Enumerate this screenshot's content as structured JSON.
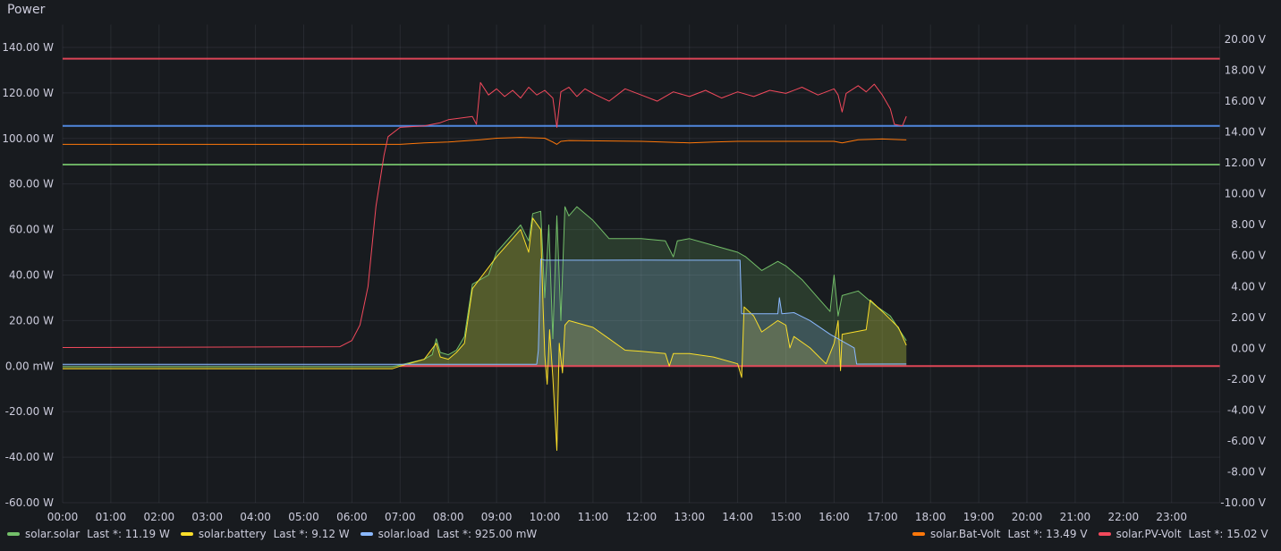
{
  "panel": {
    "title": "Power"
  },
  "chart_data": {
    "type": "line",
    "title": "Power",
    "x_unit": "time of day",
    "xlim": [
      "00:00",
      "24:00"
    ],
    "x_ticks": [
      "00:00",
      "01:00",
      "02:00",
      "03:00",
      "04:00",
      "05:00",
      "06:00",
      "07:00",
      "08:00",
      "09:00",
      "10:00",
      "11:00",
      "12:00",
      "13:00",
      "14:00",
      "15:00",
      "16:00",
      "17:00",
      "18:00",
      "19:00",
      "20:00",
      "21:00",
      "22:00",
      "23:00"
    ],
    "y_left": {
      "ylim": [
        -60,
        150
      ],
      "ticks": [
        -60,
        -40,
        -20,
        0,
        20,
        40,
        60,
        80,
        100,
        120,
        140
      ],
      "tick_labels": [
        "-60.00 W",
        "-40.00 W",
        "-20.00 W",
        "0.00 mW",
        "20.00 W",
        "40.00 W",
        "60.00 W",
        "80.00 W",
        "100.00 W",
        "120.00 W",
        "140.00 W"
      ]
    },
    "y_right": {
      "ylim": [
        -10,
        21
      ],
      "ticks": [
        -10,
        -8,
        -6,
        -4,
        -2,
        0,
        2,
        4,
        6,
        8,
        10,
        12,
        14,
        16,
        18,
        20
      ],
      "tick_labels": [
        "-10.00 V",
        "-8.00 V",
        "-6.00 V",
        "-4.00 V",
        "-2.00 V",
        "0.00 V",
        "2.00 V",
        "4.00 V",
        "6.00 V",
        "8.00 V",
        "10.00 V",
        "12.00 V",
        "14.00 V",
        "16.00 V",
        "18.00 V",
        "20.00 V"
      ]
    },
    "grid": true,
    "legend_placement": "bottom",
    "thresholds": [
      {
        "axis": "left",
        "value": 135,
        "color": "#f2495c"
      },
      {
        "axis": "left",
        "value": 105.5,
        "color": "#5794f2"
      },
      {
        "axis": "left",
        "value": 88.5,
        "color": "#73bf69"
      },
      {
        "axis": "left",
        "value": 0,
        "color": "#f2495c",
        "from": "07:00"
      }
    ],
    "series": [
      {
        "name": "solar.solar",
        "axis": "left",
        "color": "#73bf69",
        "fill": true,
        "last": "Last *: 11.19 W",
        "points": [
          [
            "00:00",
            -0.3
          ],
          [
            "06:50",
            -0.3
          ],
          [
            "07:00",
            0.5
          ],
          [
            "07:30",
            3
          ],
          [
            "07:40",
            5
          ],
          [
            "07:45",
            12
          ],
          [
            "07:50",
            6
          ],
          [
            "08:00",
            5
          ],
          [
            "08:10",
            7
          ],
          [
            "08:20",
            13
          ],
          [
            "08:30",
            36
          ],
          [
            "08:50",
            40
          ],
          [
            "09:00",
            50
          ],
          [
            "09:20",
            58
          ],
          [
            "09:30",
            62
          ],
          [
            "09:40",
            55
          ],
          [
            "09:45",
            67
          ],
          [
            "09:55",
            68
          ],
          [
            "10:00",
            30
          ],
          [
            "10:05",
            62
          ],
          [
            "10:10",
            12
          ],
          [
            "10:15",
            66
          ],
          [
            "10:20",
            20
          ],
          [
            "10:25",
            70
          ],
          [
            "10:30",
            66
          ],
          [
            "10:40",
            70
          ],
          [
            "11:00",
            64
          ],
          [
            "11:10",
            60
          ],
          [
            "11:20",
            56
          ],
          [
            "12:00",
            56
          ],
          [
            "12:30",
            55
          ],
          [
            "12:40",
            48
          ],
          [
            "12:45",
            55
          ],
          [
            "13:00",
            56
          ],
          [
            "13:30",
            53
          ],
          [
            "14:00",
            50
          ],
          [
            "14:10",
            48
          ],
          [
            "14:30",
            42
          ],
          [
            "14:50",
            46
          ],
          [
            "15:00",
            44
          ],
          [
            "15:20",
            38
          ],
          [
            "15:40",
            30
          ],
          [
            "15:55",
            24
          ],
          [
            "16:00",
            40
          ],
          [
            "16:05",
            22
          ],
          [
            "16:10",
            31
          ],
          [
            "16:30",
            33
          ],
          [
            "16:50",
            27
          ],
          [
            "17:10",
            22
          ],
          [
            "17:30",
            11.19
          ]
        ]
      },
      {
        "name": "solar.battery",
        "axis": "left",
        "color": "#fade2a",
        "fill": true,
        "last": "Last *: 9.12 W",
        "points": [
          [
            "00:00",
            -1.2
          ],
          [
            "06:50",
            -1.2
          ],
          [
            "07:00",
            0
          ],
          [
            "07:30",
            3
          ],
          [
            "07:45",
            10
          ],
          [
            "07:50",
            4
          ],
          [
            "08:00",
            3
          ],
          [
            "08:10",
            6
          ],
          [
            "08:20",
            10
          ],
          [
            "08:30",
            34
          ],
          [
            "09:00",
            48
          ],
          [
            "09:20",
            56
          ],
          [
            "09:30",
            60
          ],
          [
            "09:40",
            50
          ],
          [
            "09:45",
            65
          ],
          [
            "09:55",
            60
          ],
          [
            "09:58",
            25
          ],
          [
            "10:00",
            5
          ],
          [
            "10:03",
            -8
          ],
          [
            "10:06",
            16
          ],
          [
            "10:10",
            -5
          ],
          [
            "10:15",
            -37
          ],
          [
            "10:18",
            10
          ],
          [
            "10:22",
            -3
          ],
          [
            "10:25",
            18
          ],
          [
            "10:30",
            20
          ],
          [
            "11:00",
            17
          ],
          [
            "11:20",
            12
          ],
          [
            "11:40",
            7
          ],
          [
            "12:00",
            6.5
          ],
          [
            "12:30",
            5.5
          ],
          [
            "12:35",
            0
          ],
          [
            "12:40",
            5.5
          ],
          [
            "13:00",
            5.5
          ],
          [
            "13:30",
            4
          ],
          [
            "14:00",
            1
          ],
          [
            "14:05",
            -5
          ],
          [
            "14:08",
            26
          ],
          [
            "14:20",
            22
          ],
          [
            "14:30",
            15
          ],
          [
            "14:50",
            20
          ],
          [
            "15:00",
            18
          ],
          [
            "15:05",
            8
          ],
          [
            "15:10",
            13
          ],
          [
            "15:30",
            8
          ],
          [
            "15:50",
            1
          ],
          [
            "16:00",
            10
          ],
          [
            "16:05",
            20
          ],
          [
            "16:08",
            -2
          ],
          [
            "16:10",
            14
          ],
          [
            "16:40",
            16
          ],
          [
            "16:45",
            29
          ],
          [
            "17:00",
            24
          ],
          [
            "17:20",
            17
          ],
          [
            "17:30",
            9.12
          ]
        ]
      },
      {
        "name": "solar.load",
        "axis": "left",
        "color": "#8ab8ff",
        "fill": true,
        "last": "Last *: 925.00 mW",
        "points": [
          [
            "00:00",
            0.8
          ],
          [
            "09:50",
            0.8
          ],
          [
            "09:52",
            7
          ],
          [
            "09:55",
            47
          ],
          [
            "10:00",
            46.5
          ],
          [
            "11:00",
            46.5
          ],
          [
            "12:00",
            46.6
          ],
          [
            "13:00",
            46.5
          ],
          [
            "14:00",
            46.5
          ],
          [
            "14:03",
            46.5
          ],
          [
            "14:05",
            23
          ],
          [
            "14:50",
            23
          ],
          [
            "14:52",
            30
          ],
          [
            "14:55",
            23
          ],
          [
            "15:10",
            23.5
          ],
          [
            "15:30",
            20
          ],
          [
            "15:55",
            14
          ],
          [
            "16:10",
            11
          ],
          [
            "16:25",
            8
          ],
          [
            "16:28",
            0.9
          ],
          [
            "17:30",
            0.925
          ]
        ]
      },
      {
        "name": "solar.Bat-Volt",
        "axis": "right",
        "color": "#ff780a",
        "fill": false,
        "last": "Last *: 13.49 V",
        "points": [
          [
            "00:00",
            13.2
          ],
          [
            "07:00",
            13.2
          ],
          [
            "07:30",
            13.3
          ],
          [
            "08:00",
            13.35
          ],
          [
            "08:40",
            13.5
          ],
          [
            "09:00",
            13.6
          ],
          [
            "09:30",
            13.65
          ],
          [
            "10:00",
            13.6
          ],
          [
            "10:10",
            13.35
          ],
          [
            "10:15",
            13.2
          ],
          [
            "10:20",
            13.4
          ],
          [
            "10:30",
            13.45
          ],
          [
            "12:00",
            13.4
          ],
          [
            "13:00",
            13.3
          ],
          [
            "13:30",
            13.35
          ],
          [
            "14:00",
            13.4
          ],
          [
            "16:00",
            13.4
          ],
          [
            "16:10",
            13.3
          ],
          [
            "16:30",
            13.5
          ],
          [
            "17:00",
            13.55
          ],
          [
            "17:25",
            13.5
          ],
          [
            "17:30",
            13.49
          ]
        ]
      },
      {
        "name": "solar.PV-Volt",
        "axis": "right",
        "color": "#f2495c",
        "fill": false,
        "last": "Last *: 15.02 V",
        "points": [
          [
            "00:00",
            0.05
          ],
          [
            "05:45",
            0.1
          ],
          [
            "06:00",
            0.5
          ],
          [
            "06:10",
            1.5
          ],
          [
            "06:20",
            4
          ],
          [
            "06:30",
            9.2
          ],
          [
            "06:40",
            12.5
          ],
          [
            "06:45",
            13.7
          ],
          [
            "07:00",
            14.3
          ],
          [
            "07:30",
            14.4
          ],
          [
            "07:50",
            14.6
          ],
          [
            "08:00",
            14.8
          ],
          [
            "08:30",
            15.0
          ],
          [
            "08:35",
            14.5
          ],
          [
            "08:40",
            17.2
          ],
          [
            "08:50",
            16.4
          ],
          [
            "09:00",
            16.8
          ],
          [
            "09:10",
            16.3
          ],
          [
            "09:20",
            16.7
          ],
          [
            "09:30",
            16.2
          ],
          [
            "09:40",
            16.9
          ],
          [
            "09:50",
            16.4
          ],
          [
            "10:00",
            16.7
          ],
          [
            "10:10",
            16.2
          ],
          [
            "10:15",
            14.3
          ],
          [
            "10:20",
            16.6
          ],
          [
            "10:30",
            16.9
          ],
          [
            "10:40",
            16.3
          ],
          [
            "10:50",
            16.8
          ],
          [
            "11:00",
            16.5
          ],
          [
            "11:20",
            16.0
          ],
          [
            "11:40",
            16.8
          ],
          [
            "12:00",
            16.4
          ],
          [
            "12:20",
            16.0
          ],
          [
            "12:40",
            16.6
          ],
          [
            "13:00",
            16.3
          ],
          [
            "13:20",
            16.7
          ],
          [
            "13:40",
            16.2
          ],
          [
            "14:00",
            16.6
          ],
          [
            "14:20",
            16.3
          ],
          [
            "14:40",
            16.7
          ],
          [
            "15:00",
            16.5
          ],
          [
            "15:20",
            16.9
          ],
          [
            "15:40",
            16.4
          ],
          [
            "16:00",
            16.8
          ],
          [
            "16:05",
            16.4
          ],
          [
            "16:10",
            15.3
          ],
          [
            "16:15",
            16.5
          ],
          [
            "16:30",
            17.0
          ],
          [
            "16:40",
            16.6
          ],
          [
            "16:50",
            17.1
          ],
          [
            "17:00",
            16.4
          ],
          [
            "17:10",
            15.5
          ],
          [
            "17:15",
            14.5
          ],
          [
            "17:25",
            14.4
          ],
          [
            "17:30",
            15.02
          ]
        ]
      }
    ]
  }
}
